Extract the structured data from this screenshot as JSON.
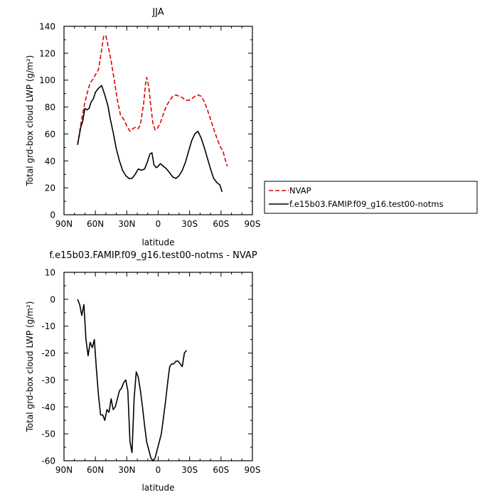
{
  "chart_data": [
    {
      "type": "line",
      "title": "JJA",
      "xlabel": "latitude",
      "ylabel": "Total grd-box cloud LWP (g/m²)",
      "xlim": [
        90,
        -90
      ],
      "ylim": [
        0,
        140
      ],
      "x_ticks": [
        {
          "value": 90,
          "label": "90N"
        },
        {
          "value": 60,
          "label": "60N"
        },
        {
          "value": 30,
          "label": "30N"
        },
        {
          "value": 0,
          "label": "0"
        },
        {
          "value": -30,
          "label": "30S"
        },
        {
          "value": -60,
          "label": "60S"
        },
        {
          "value": -90,
          "label": "90S"
        }
      ],
      "y_ticks": [
        0,
        20,
        40,
        60,
        80,
        100,
        120,
        140
      ],
      "legend_position": "right",
      "series": [
        {
          "name": "NVAP",
          "color": "#e00000",
          "dashed": true,
          "points": [
            [
              77,
              52
            ],
            [
              74,
              67
            ],
            [
              71,
              80
            ],
            [
              68,
              90
            ],
            [
              65,
              98
            ],
            [
              62,
              101
            ],
            [
              60,
              104
            ],
            [
              57,
              108
            ],
            [
              54,
              123
            ],
            [
              52,
              133
            ],
            [
              50,
              133
            ],
            [
              48,
              126
            ],
            [
              45,
              114
            ],
            [
              42,
              100
            ],
            [
              39,
              85
            ],
            [
              36,
              74
            ],
            [
              33,
              71
            ],
            [
              30,
              66
            ],
            [
              27,
              62
            ],
            [
              24,
              64
            ],
            [
              22,
              65
            ],
            [
              19,
              64
            ],
            [
              17,
              67
            ],
            [
              14,
              82
            ],
            [
              12,
              98
            ],
            [
              11,
              102
            ],
            [
              9,
              95
            ],
            [
              7,
              80
            ],
            [
              5,
              68
            ],
            [
              3,
              63
            ],
            [
              1,
              64
            ],
            [
              -2,
              68
            ],
            [
              -5,
              75
            ],
            [
              -8,
              81
            ],
            [
              -11,
              85
            ],
            [
              -14,
              88
            ],
            [
              -17,
              89
            ],
            [
              -20,
              88
            ],
            [
              -23,
              87
            ],
            [
              -26,
              85
            ],
            [
              -29,
              85
            ],
            [
              -32,
              86
            ],
            [
              -35,
              88
            ],
            [
              -38,
              89
            ],
            [
              -41,
              88
            ],
            [
              -44,
              84
            ],
            [
              -47,
              78
            ],
            [
              -50,
              71
            ],
            [
              -53,
              64
            ],
            [
              -56,
              57
            ],
            [
              -59,
              51
            ],
            [
              -62,
              47
            ],
            [
              -64,
              41
            ],
            [
              -66,
              36
            ]
          ]
        },
        {
          "name": "f.e15b03.FAMIP.f09_g16.test00-notms",
          "color": "#000000",
          "dashed": false,
          "points": [
            [
              77,
              52
            ],
            [
              74,
              65
            ],
            [
              72,
              70
            ],
            [
              70,
              79
            ],
            [
              68,
              78
            ],
            [
              66,
              79
            ],
            [
              64,
              84
            ],
            [
              62,
              86
            ],
            [
              60,
              91
            ],
            [
              57,
              94
            ],
            [
              54,
              96
            ],
            [
              51,
              89
            ],
            [
              48,
              81
            ],
            [
              46,
              72
            ],
            [
              43,
              61
            ],
            [
              40,
              49
            ],
            [
              37,
              40
            ],
            [
              34,
              33
            ],
            [
              31,
              29
            ],
            [
              28,
              27
            ],
            [
              25,
              27
            ],
            [
              22,
              30
            ],
            [
              19,
              34
            ],
            [
              16,
              33
            ],
            [
              13,
              34
            ],
            [
              10,
              40
            ],
            [
              8,
              45
            ],
            [
              6,
              46
            ],
            [
              4,
              37
            ],
            [
              2,
              35
            ],
            [
              0,
              36
            ],
            [
              -2,
              38
            ],
            [
              -5,
              36
            ],
            [
              -8,
              34
            ],
            [
              -11,
              31
            ],
            [
              -14,
              28
            ],
            [
              -17,
              27
            ],
            [
              -20,
              29
            ],
            [
              -23,
              33
            ],
            [
              -26,
              39
            ],
            [
              -29,
              47
            ],
            [
              -32,
              55
            ],
            [
              -35,
              60
            ],
            [
              -38,
              62
            ],
            [
              -41,
              57
            ],
            [
              -44,
              50
            ],
            [
              -47,
              42
            ],
            [
              -50,
              34
            ],
            [
              -53,
              27
            ],
            [
              -56,
              24
            ],
            [
              -59,
              22
            ],
            [
              -61,
              17
            ]
          ]
        }
      ]
    },
    {
      "type": "line",
      "title": "f.e15b03.FAMIP.f09_g16.test00-notms - NVAP",
      "xlabel": "latitude",
      "ylabel": "Total grd-box cloud LWP (g/m²)",
      "xlim": [
        90,
        -90
      ],
      "ylim": [
        -60,
        10
      ],
      "x_ticks": [
        {
          "value": 90,
          "label": "90N"
        },
        {
          "value": 60,
          "label": "60N"
        },
        {
          "value": 30,
          "label": "30N"
        },
        {
          "value": 0,
          "label": "0"
        },
        {
          "value": -30,
          "label": "30S"
        },
        {
          "value": -60,
          "label": "60S"
        },
        {
          "value": -90,
          "label": "90S"
        }
      ],
      "y_ticks": [
        -60,
        -50,
        -40,
        -30,
        -20,
        -10,
        0,
        10
      ],
      "series": [
        {
          "color": "#000000",
          "dashed": false,
          "points": [
            [
              77,
              0
            ],
            [
              75,
              -2
            ],
            [
              73,
              -6
            ],
            [
              71,
              -2
            ],
            [
              69,
              -15
            ],
            [
              67,
              -21
            ],
            [
              65,
              -16
            ],
            [
              63,
              -18
            ],
            [
              61,
              -15
            ],
            [
              59,
              -26
            ],
            [
              57,
              -36
            ],
            [
              55,
              -43
            ],
            [
              53,
              -43
            ],
            [
              51,
              -45
            ],
            [
              49,
              -41
            ],
            [
              47,
              -42
            ],
            [
              45,
              -37
            ],
            [
              43,
              -41
            ],
            [
              41,
              -40
            ],
            [
              39,
              -37
            ],
            [
              37,
              -34
            ],
            [
              35,
              -33
            ],
            [
              33,
              -31
            ],
            [
              31,
              -30
            ],
            [
              29,
              -34
            ],
            [
              27,
              -53
            ],
            [
              25,
              -57
            ],
            [
              23,
              -37
            ],
            [
              21,
              -27
            ],
            [
              19,
              -29
            ],
            [
              17,
              -34
            ],
            [
              15,
              -40
            ],
            [
              13,
              -47
            ],
            [
              11,
              -53
            ],
            [
              9,
              -56
            ],
            [
              7,
              -59
            ],
            [
              5,
              -60
            ],
            [
              3,
              -59
            ],
            [
              1,
              -56
            ],
            [
              -1,
              -53
            ],
            [
              -3,
              -50
            ],
            [
              -5,
              -44
            ],
            [
              -7,
              -38
            ],
            [
              -9,
              -31
            ],
            [
              -11,
              -25
            ],
            [
              -13,
              -24
            ],
            [
              -15,
              -24
            ],
            [
              -17,
              -23
            ],
            [
              -19,
              -23
            ],
            [
              -21,
              -24
            ],
            [
              -23,
              -25
            ],
            [
              -25,
              -20
            ],
            [
              -27,
              -19
            ]
          ]
        }
      ]
    }
  ]
}
